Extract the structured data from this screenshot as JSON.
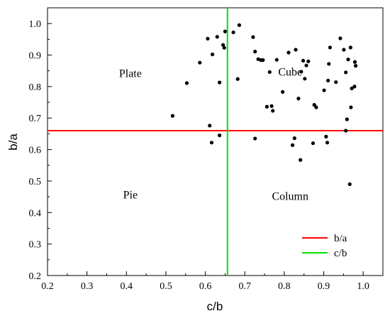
{
  "chart_data": {
    "type": "scatter",
    "xlabel": "c/b",
    "ylabel": "b/a",
    "xlim": [
      0.2,
      1.05
    ],
    "ylim": [
      0.2,
      1.05
    ],
    "xticks": [
      "0.2",
      "0.3",
      "0.4",
      "0.5",
      "0.6",
      "0.7",
      "0.8",
      "0.9",
      "1.0"
    ],
    "yticks": [
      "0.2",
      "0.3",
      "0.4",
      "0.5",
      "0.6",
      "0.7",
      "0.8",
      "0.9",
      "1.0"
    ],
    "grid": false,
    "legend_position": "bottom-right",
    "regions": [
      {
        "label": "Plate",
        "x": 0.41,
        "y": 0.83
      },
      {
        "label": "Cube",
        "x": 0.815,
        "y": 0.835
      },
      {
        "label": "Pie",
        "x": 0.41,
        "y": 0.445
      },
      {
        "label": "Column",
        "x": 0.815,
        "y": 0.44
      }
    ],
    "series": [
      {
        "name": "b/a",
        "kind": "hline",
        "y": 0.66,
        "color": "#ff0000"
      },
      {
        "name": "c/b",
        "kind": "vline",
        "x": 0.656,
        "color": "#00e000"
      }
    ],
    "points": [
      {
        "x": 0.517,
        "y": 0.707
      },
      {
        "x": 0.553,
        "y": 0.811
      },
      {
        "x": 0.586,
        "y": 0.876
      },
      {
        "x": 0.606,
        "y": 0.952
      },
      {
        "x": 0.611,
        "y": 0.676
      },
      {
        "x": 0.616,
        "y": 0.622
      },
      {
        "x": 0.618,
        "y": 0.902
      },
      {
        "x": 0.63,
        "y": 0.958
      },
      {
        "x": 0.636,
        "y": 0.813
      },
      {
        "x": 0.636,
        "y": 0.645
      },
      {
        "x": 0.645,
        "y": 0.932
      },
      {
        "x": 0.648,
        "y": 0.923
      },
      {
        "x": 0.65,
        "y": 0.975
      },
      {
        "x": 0.671,
        "y": 0.972
      },
      {
        "x": 0.682,
        "y": 0.824
      },
      {
        "x": 0.686,
        "y": 0.995
      },
      {
        "x": 0.721,
        "y": 0.957
      },
      {
        "x": 0.726,
        "y": 0.911
      },
      {
        "x": 0.726,
        "y": 0.635
      },
      {
        "x": 0.734,
        "y": 0.887
      },
      {
        "x": 0.741,
        "y": 0.884
      },
      {
        "x": 0.746,
        "y": 0.884
      },
      {
        "x": 0.756,
        "y": 0.736
      },
      {
        "x": 0.763,
        "y": 0.846
      },
      {
        "x": 0.768,
        "y": 0.738
      },
      {
        "x": 0.771,
        "y": 0.723
      },
      {
        "x": 0.781,
        "y": 0.885
      },
      {
        "x": 0.796,
        "y": 0.783
      },
      {
        "x": 0.811,
        "y": 0.908
      },
      {
        "x": 0.821,
        "y": 0.614
      },
      {
        "x": 0.826,
        "y": 0.636
      },
      {
        "x": 0.829,
        "y": 0.917
      },
      {
        "x": 0.836,
        "y": 0.762
      },
      {
        "x": 0.841,
        "y": 0.567
      },
      {
        "x": 0.843,
        "y": 0.847
      },
      {
        "x": 0.848,
        "y": 0.882
      },
      {
        "x": 0.852,
        "y": 0.825
      },
      {
        "x": 0.856,
        "y": 0.867
      },
      {
        "x": 0.861,
        "y": 0.88
      },
      {
        "x": 0.873,
        "y": 0.62
      },
      {
        "x": 0.876,
        "y": 0.742
      },
      {
        "x": 0.881,
        "y": 0.734
      },
      {
        "x": 0.901,
        "y": 0.788
      },
      {
        "x": 0.906,
        "y": 0.641
      },
      {
        "x": 0.909,
        "y": 0.622
      },
      {
        "x": 0.911,
        "y": 0.819
      },
      {
        "x": 0.913,
        "y": 0.872
      },
      {
        "x": 0.916,
        "y": 0.924
      },
      {
        "x": 0.931,
        "y": 0.814
      },
      {
        "x": 0.942,
        "y": 0.953
      },
      {
        "x": 0.951,
        "y": 0.917
      },
      {
        "x": 0.956,
        "y": 0.845
      },
      {
        "x": 0.956,
        "y": 0.66
      },
      {
        "x": 0.959,
        "y": 0.696
      },
      {
        "x": 0.962,
        "y": 0.886
      },
      {
        "x": 0.966,
        "y": 0.49
      },
      {
        "x": 0.968,
        "y": 0.924
      },
      {
        "x": 0.969,
        "y": 0.734
      },
      {
        "x": 0.971,
        "y": 0.794
      },
      {
        "x": 0.978,
        "y": 0.8
      },
      {
        "x": 0.979,
        "y": 0.878
      },
      {
        "x": 0.981,
        "y": 0.866
      }
    ]
  }
}
